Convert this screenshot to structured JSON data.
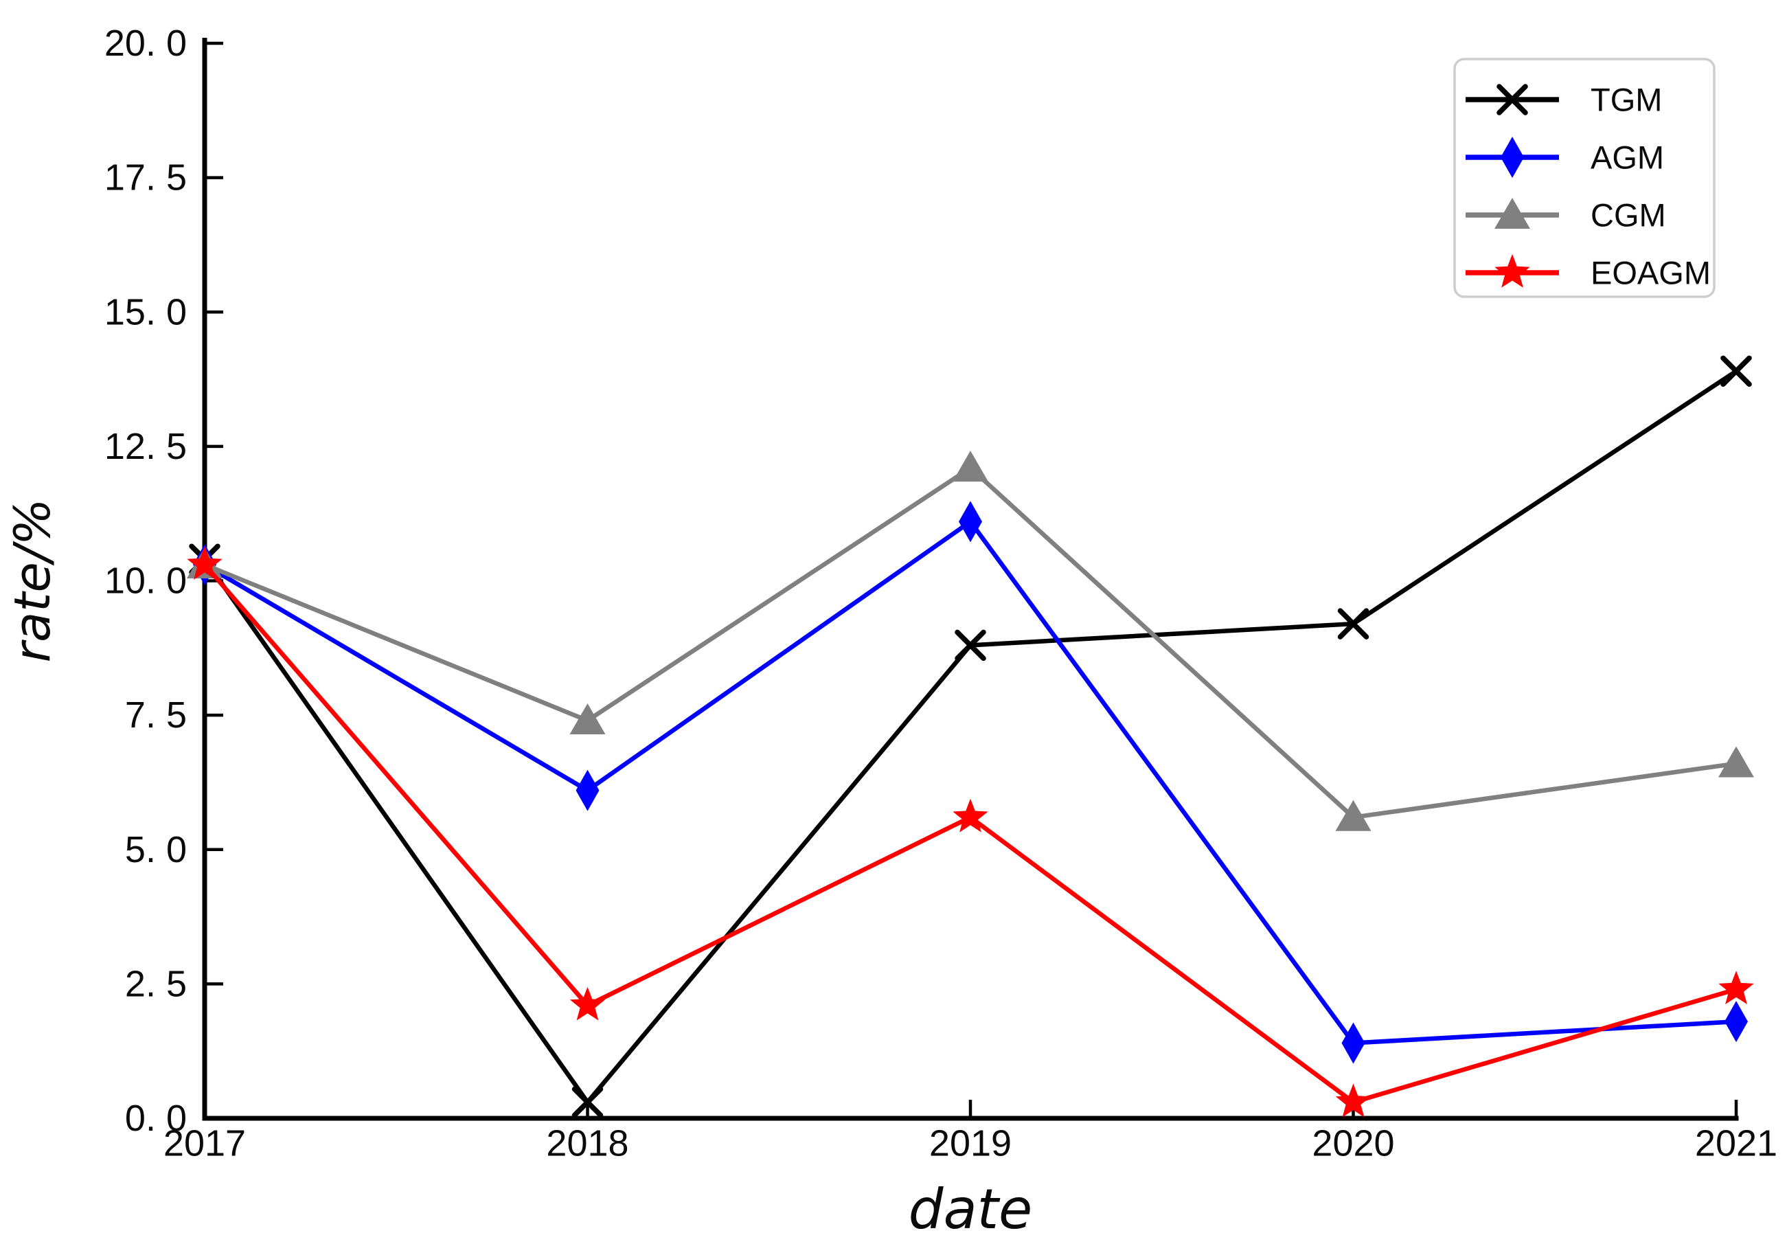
{
  "chart_data": {
    "type": "line",
    "title": "",
    "xlabel": "date",
    "ylabel": "rate/%",
    "x": [
      2017,
      2018,
      2019,
      2020,
      2021
    ],
    "x_tick_labels": [
      "2017",
      "2018",
      "2019",
      "2020",
      "2021"
    ],
    "y_ticks": [
      0,
      2.5,
      5,
      7.5,
      10,
      12.5,
      15,
      17.5,
      20
    ],
    "y_tick_labels": [
      "0. 0",
      "2. 5",
      "5. 0",
      "7. 5",
      "10. 0",
      "12. 5",
      "15. 0",
      "17. 5",
      "20. 0"
    ],
    "xlim": [
      2017,
      2021
    ],
    "ylim": [
      0,
      20
    ],
    "grid": false,
    "legend_position": "upper-right",
    "background_color": "#ffffff",
    "axis_color": "#000000",
    "legend_border_color": "#cdcdcd",
    "series": [
      {
        "name": "TGM",
        "color": "#000000",
        "marker": "x",
        "values": [
          10.4,
          0.3,
          8.8,
          9.2,
          13.9
        ]
      },
      {
        "name": "AGM",
        "color": "#0000ff",
        "marker": "thin-diamond",
        "values": [
          10.3,
          6.1,
          11.1,
          1.4,
          1.8
        ]
      },
      {
        "name": "CGM",
        "color": "#808080",
        "marker": "triangle-up",
        "values": [
          10.3,
          7.4,
          12.1,
          5.6,
          6.6
        ]
      },
      {
        "name": "EOAGM",
        "color": "#ff0000",
        "marker": "star",
        "values": [
          10.3,
          2.1,
          5.6,
          0.3,
          2.4
        ]
      }
    ]
  }
}
